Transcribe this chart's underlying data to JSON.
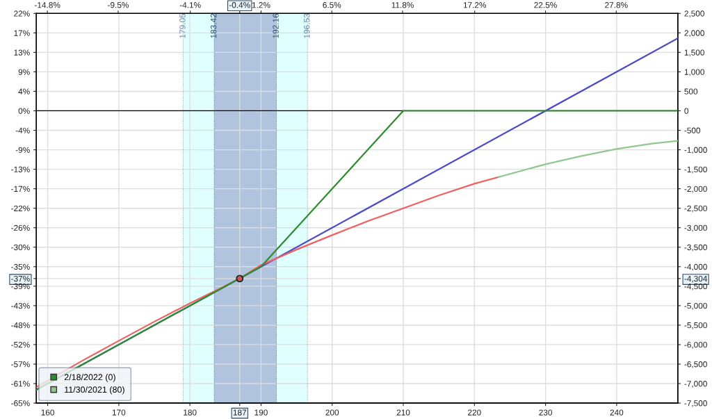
{
  "chart_data": {
    "type": "line",
    "xlim": [
      158.4,
      248.6
    ],
    "xticks": [
      160,
      170,
      180,
      187,
      190,
      200,
      210,
      220,
      230,
      240
    ],
    "x2lim": [
      -15.63,
      32.41
    ],
    "x2ticks": [
      {
        "value": -14.8,
        "label": "-14.8%"
      },
      {
        "value": -9.5,
        "label": "-9.5%"
      },
      {
        "value": -4.1,
        "label": "-4.1%"
      },
      {
        "value": -0.4,
        "label": "-0.4%"
      },
      {
        "value": 1.2,
        "label": "1.2%"
      },
      {
        "value": 6.5,
        "label": "6.5%"
      },
      {
        "value": 11.8,
        "label": "11.8%"
      },
      {
        "value": 17.2,
        "label": "17.2%"
      },
      {
        "value": 22.5,
        "label": "22.5%"
      },
      {
        "value": 27.8,
        "label": "27.8%"
      }
    ],
    "ylim": [
      -65.22,
      21.74
    ],
    "yticks": [
      {
        "value": 21.74,
        "label": "22%"
      },
      {
        "value": 17.39,
        "label": "17%"
      },
      {
        "value": 13.04,
        "label": "13%"
      },
      {
        "value": 8.7,
        "label": "9%"
      },
      {
        "value": 4.35,
        "label": "4%"
      },
      {
        "value": 0,
        "label": "0%"
      },
      {
        "value": -4.35,
        "label": "-4%"
      },
      {
        "value": -8.7,
        "label": "-9%"
      },
      {
        "value": -13.04,
        "label": "-13%"
      },
      {
        "value": -17.39,
        "label": "-17%"
      },
      {
        "value": -21.74,
        "label": "-22%"
      },
      {
        "value": -26.09,
        "label": "-26%"
      },
      {
        "value": -30.43,
        "label": "-30%"
      },
      {
        "value": -34.78,
        "label": "-35%"
      },
      {
        "value": -37.43,
        "label": "-37%"
      },
      {
        "value": -39.13,
        "label": "-39%"
      },
      {
        "value": -43.48,
        "label": "-43%"
      },
      {
        "value": -47.83,
        "label": "-48%"
      },
      {
        "value": -52.17,
        "label": "-52%"
      },
      {
        "value": -56.52,
        "label": "-57%"
      },
      {
        "value": -60.87,
        "label": "-61%"
      },
      {
        "value": -65.22,
        "label": "-65%"
      }
    ],
    "y2lim": [
      -7500,
      2500
    ],
    "y2ticks": [
      {
        "value": 2500,
        "label": "2,500"
      },
      {
        "value": 2000,
        "label": "2,000"
      },
      {
        "value": 1500,
        "label": "1,500"
      },
      {
        "value": 1000,
        "label": "1,000"
      },
      500,
      0,
      -500,
      {
        "value": -1000,
        "label": "-1,000"
      },
      {
        "value": -1500,
        "label": "-1,500"
      },
      {
        "value": -2000,
        "label": "-2,000"
      },
      {
        "value": -2500,
        "label": "-2,500"
      },
      {
        "value": -3000,
        "label": "-3,000"
      },
      {
        "value": -3500,
        "label": "-3,500"
      },
      {
        "value": -4000,
        "label": "-4,000"
      },
      {
        "value": -4304,
        "label": "-4,304"
      },
      {
        "value": -4500,
        "label": "-4,500"
      },
      {
        "value": -5000,
        "label": "-5,000"
      },
      {
        "value": -5500,
        "label": "-5,500"
      },
      {
        "value": -6000,
        "label": "-6,000"
      },
      {
        "value": -6500,
        "label": "-6,500"
      },
      {
        "value": -7000,
        "label": "-7,000"
      },
      {
        "value": -7500,
        "label": "-7,500"
      }
    ],
    "bands": [
      {
        "axis": "x",
        "from": 179.05,
        "to": 196.53,
        "color": "#e0ffff"
      },
      {
        "axis": "x",
        "from": 183.42,
        "to": 192.16,
        "color": "#b0c4de"
      }
    ],
    "ref_lines": [
      {
        "axis": "x",
        "value": 179.05,
        "label": "179.05",
        "color": "#6a86a4"
      },
      {
        "axis": "x",
        "value": 183.42,
        "label": "183.42",
        "color": "#2f4f6f"
      },
      {
        "axis": "x",
        "value": 192.16,
        "label": "192.16",
        "color": "#2f4f6f"
      },
      {
        "axis": "x",
        "value": 196.53,
        "label": "196.53",
        "color": "#6a86a4"
      },
      {
        "axis": "y2",
        "value": 0,
        "color": "#000000"
      }
    ],
    "series": [
      {
        "axis": "y2",
        "color": "#4b4bc8",
        "x": [
          158.4,
          248.6
        ],
        "values": [
          -7160,
          1860
        ]
      },
      {
        "axis": "y2",
        "color": "#f06060",
        "x": [
          158.4,
          165,
          170,
          175,
          180,
          185,
          187,
          190,
          195,
          200,
          205,
          210,
          215,
          220,
          223.4
        ],
        "values": [
          -7090,
          -6400,
          -5900,
          -5410,
          -4940,
          -4490,
          -4300,
          -3960,
          -3560,
          -3190,
          -2830,
          -2500,
          -2170,
          -1870,
          -1700
        ]
      },
      {
        "axis": "y2",
        "name": "11/30/2021 (80)",
        "color": "#90c890",
        "x": [
          223.4,
          230,
          235,
          240,
          245,
          248.6
        ],
        "values": [
          -1700,
          -1370,
          -1160,
          -980,
          -840,
          -770
        ]
      },
      {
        "axis": "y2",
        "name": "2/18/2022 (0)",
        "color": "#2e8b2e",
        "x": [
          158.4,
          190,
          210,
          248.6
        ],
        "values": [
          -7160,
          -4000,
          0,
          0
        ]
      },
      {
        "axis": "y2",
        "type": "scatter",
        "color": "#e05050",
        "x": [
          187
        ],
        "values": [
          -4304
        ]
      }
    ],
    "grid": true,
    "legend": "bottom left"
  }
}
